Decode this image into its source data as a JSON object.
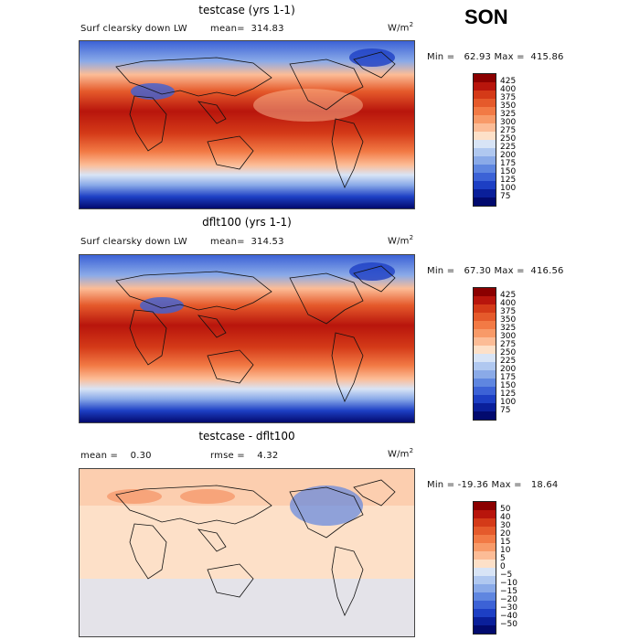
{
  "season": "SON",
  "panels": [
    {
      "id": "p1",
      "title": "testcase (yrs 1-1)",
      "variable": "Surf clearsky down LW",
      "stat": "mean=  314.83",
      "units_main": "W/m",
      "units_sup": "2",
      "minmax": "Min =   62.93 Max =  415.86",
      "colorbar": {
        "labels": [
          "425",
          "400",
          "375",
          "350",
          "325",
          "300",
          "275",
          "250",
          "225",
          "200",
          "175",
          "150",
          "125",
          "100",
          "75"
        ],
        "colors": [
          "#8b0000",
          "#b8150c",
          "#d43a18",
          "#e55a2b",
          "#f27a45",
          "#f89a68",
          "#fcbc96",
          "#fde0c8",
          "#d8e4f6",
          "#b0c8f0",
          "#8aaae8",
          "#5f86e0",
          "#3c62d6",
          "#1d3fc4",
          "#0a1f9a",
          "#020a6e"
        ]
      }
    },
    {
      "id": "p2",
      "title": "dflt100 (yrs 1-1)",
      "variable": "Surf clearsky down LW",
      "stat": "mean=  314.53",
      "units_main": "W/m",
      "units_sup": "2",
      "minmax": "Min =   67.30 Max =  416.56",
      "colorbar": {
        "labels": [
          "425",
          "400",
          "375",
          "350",
          "325",
          "300",
          "275",
          "250",
          "225",
          "200",
          "175",
          "150",
          "125",
          "100",
          "75"
        ],
        "colors": [
          "#8b0000",
          "#b8150c",
          "#d43a18",
          "#e55a2b",
          "#f27a45",
          "#f89a68",
          "#fcbc96",
          "#fde0c8",
          "#d8e4f6",
          "#b0c8f0",
          "#8aaae8",
          "#5f86e0",
          "#3c62d6",
          "#1d3fc4",
          "#0a1f9a",
          "#020a6e"
        ]
      }
    },
    {
      "id": "p3",
      "title": "testcase - dflt100",
      "stat_mean": "mean =    0.30",
      "stat_rmse": "rmse =    4.32",
      "units_main": "W/m",
      "units_sup": "2",
      "minmax": "Min = -19.36 Max =   18.64",
      "colorbar": {
        "labels": [
          "50",
          "40",
          "30",
          "20",
          "15",
          "10",
          "5",
          "0",
          "−5",
          "−10",
          "−15",
          "−20",
          "−30",
          "−40",
          "−50"
        ],
        "colors": [
          "#8b0000",
          "#b8150c",
          "#d43a18",
          "#e55a2b",
          "#f27a45",
          "#f89a68",
          "#fcbc96",
          "#fde0c8",
          "#d8e4f6",
          "#b0c8f0",
          "#8aaae8",
          "#5f86e0",
          "#3c62d6",
          "#1d3fc4",
          "#0a1f9a",
          "#020a6e"
        ]
      }
    }
  ]
}
